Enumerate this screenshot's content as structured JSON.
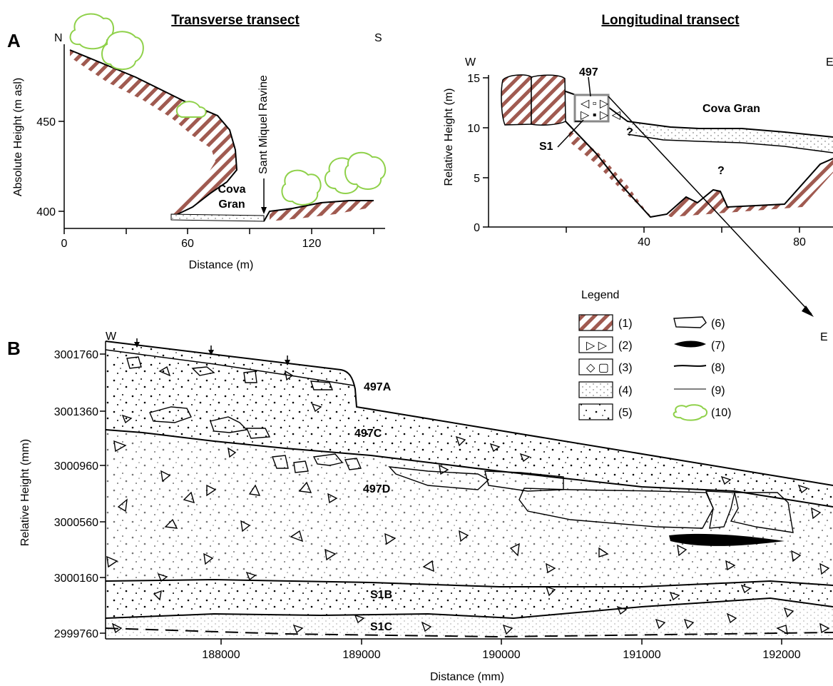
{
  "panels": {
    "A_label": "A",
    "B_label": "B"
  },
  "transverse": {
    "title": "Transverse transect",
    "north": "N",
    "south": "S",
    "ylabel": "Absolute Height (m asl)",
    "xlabel": "Distance (m)",
    "yticks": [
      "450",
      "400"
    ],
    "xticks": [
      "0",
      "60",
      "120"
    ],
    "ravine": "Sant Miquel Ravine",
    "cave_line1": "Cova",
    "cave_line2": "Gran"
  },
  "longitudinal": {
    "title": "Longitudinal transect",
    "west": "W",
    "east": "E",
    "ylabel": "Relative Height (m)",
    "yticks": [
      "15",
      "10",
      "5",
      "0"
    ],
    "xticks": [
      "40",
      "80"
    ],
    "site": "497",
    "section": "S1",
    "cave": "Cova Gran",
    "q1": "?",
    "q2": "?"
  },
  "legend": {
    "title": "Legend",
    "items": [
      "(1)",
      "(2)",
      "(3)",
      "(4)",
      "(5)",
      "(6)",
      "(7)",
      "(8)",
      "(9)",
      "(10)"
    ]
  },
  "section": {
    "west": "W",
    "east": "E",
    "ylabel": "Relative Height (mm)",
    "xlabel": "Distance (mm)",
    "yticks": [
      "3001760",
      "3001360",
      "3000960",
      "3000560",
      "3000160",
      "2999760"
    ],
    "xticks": [
      "188000",
      "189000",
      "190000",
      "191000",
      "192000"
    ],
    "units": [
      "497A",
      "497C",
      "497D",
      "S1B",
      "S1C"
    ]
  },
  "colors": {
    "bedrock_hatch": "#a05a50",
    "vegetation": "#8fd14a"
  }
}
